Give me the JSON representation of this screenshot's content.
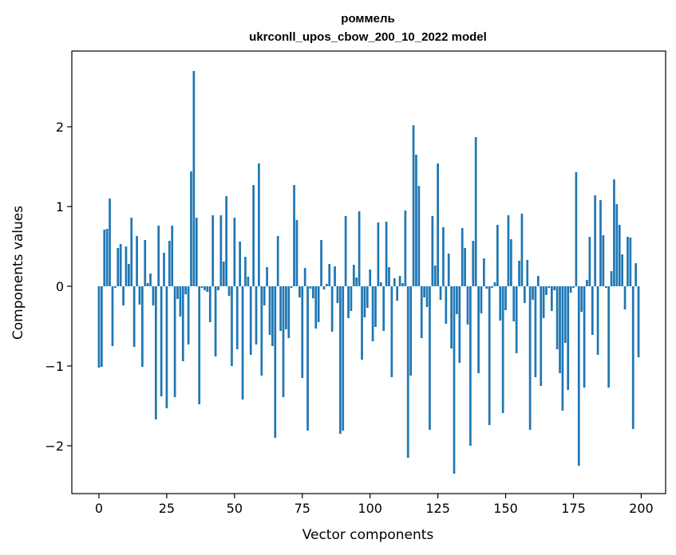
{
  "chart_data": {
    "type": "bar",
    "title": "роммель",
    "subtitle": "ukrconll_upos_cbow_200_10_2022 model",
    "xlabel": "Vector components",
    "ylabel": "Components values",
    "xlim": [
      -10,
      209
    ],
    "ylim": [
      -2.6,
      2.95
    ],
    "x_ticks": [
      0,
      25,
      50,
      75,
      100,
      125,
      150,
      175,
      200
    ],
    "y_ticks": [
      -2,
      -1,
      0,
      1,
      2
    ],
    "y_tick_labels": [
      "−2",
      "−1",
      "0",
      "1",
      "2"
    ],
    "grid": false,
    "bar_color": "#1f77b4",
    "values": [
      -1.02,
      -1.01,
      0.71,
      0.72,
      1.1,
      -0.75,
      -0.02,
      0.48,
      0.53,
      -0.24,
      0.5,
      0.28,
      0.86,
      -0.76,
      0.63,
      -0.23,
      -1.01,
      0.58,
      0.04,
      0.16,
      -0.24,
      -1.67,
      0.76,
      -1.38,
      0.42,
      -1.53,
      0.57,
      0.76,
      -1.39,
      -0.16,
      -0.38,
      -0.94,
      -0.1,
      -0.73,
      1.44,
      2.7,
      0.86,
      -1.48,
      -0.02,
      -0.05,
      -0.07,
      -0.45,
      0.89,
      -0.88,
      -0.05,
      0.89,
      0.31,
      1.13,
      -0.12,
      -1.0,
      0.86,
      -0.79,
      0.56,
      -1.42,
      0.37,
      0.12,
      -0.86,
      1.27,
      -0.73,
      1.54,
      -1.12,
      -0.24,
      0.24,
      -0.61,
      -0.75,
      -1.9,
      0.63,
      -0.56,
      -1.39,
      -0.54,
      -0.65,
      -0.02,
      1.27,
      0.83,
      -0.14,
      -1.15,
      0.23,
      -1.81,
      -0.03,
      -0.15,
      -0.53,
      -0.45,
      0.58,
      -0.04,
      0.03,
      0.28,
      -0.57,
      0.25,
      -0.21,
      -1.85,
      -1.81,
      0.88,
      -0.4,
      -0.31,
      0.27,
      0.11,
      0.94,
      -0.92,
      -0.39,
      -0.27,
      0.21,
      -0.69,
      -0.51,
      0.8,
      0.05,
      -0.56,
      0.81,
      0.24,
      -1.14,
      0.1,
      -0.18,
      0.13,
      0.04,
      0.95,
      -2.15,
      -1.12,
      2.02,
      1.65,
      1.26,
      -0.65,
      -0.14,
      -0.26,
      -1.8,
      0.88,
      0.26,
      1.54,
      -0.17,
      0.74,
      -0.47,
      0.41,
      -0.78,
      -2.35,
      -0.35,
      -0.96,
      0.73,
      0.48,
      -0.48,
      -2.0,
      0.57,
      1.87,
      -1.09,
      -0.34,
      0.35,
      -0.03,
      -1.74,
      -0.02,
      0.05,
      0.77,
      -0.43,
      -1.59,
      -0.3,
      0.89,
      0.59,
      -0.44,
      -0.84,
      0.32,
      0.91,
      -0.21,
      0.33,
      -1.8,
      -0.17,
      -1.14,
      0.13,
      -1.25,
      -0.4,
      -0.11,
      -0.02,
      -0.31,
      -0.05,
      -0.79,
      -1.09,
      -1.56,
      -0.71,
      -1.3,
      -0.08,
      -0.02,
      1.43,
      -2.25,
      -0.32,
      -1.27,
      0.08,
      0.62,
      -0.61,
      1.14,
      -0.86,
      1.08,
      0.64,
      -0.02,
      -1.27,
      0.19,
      1.34,
      1.03,
      0.77,
      0.4,
      -0.29,
      0.62,
      0.61,
      -1.79,
      0.29,
      -0.89
    ]
  }
}
